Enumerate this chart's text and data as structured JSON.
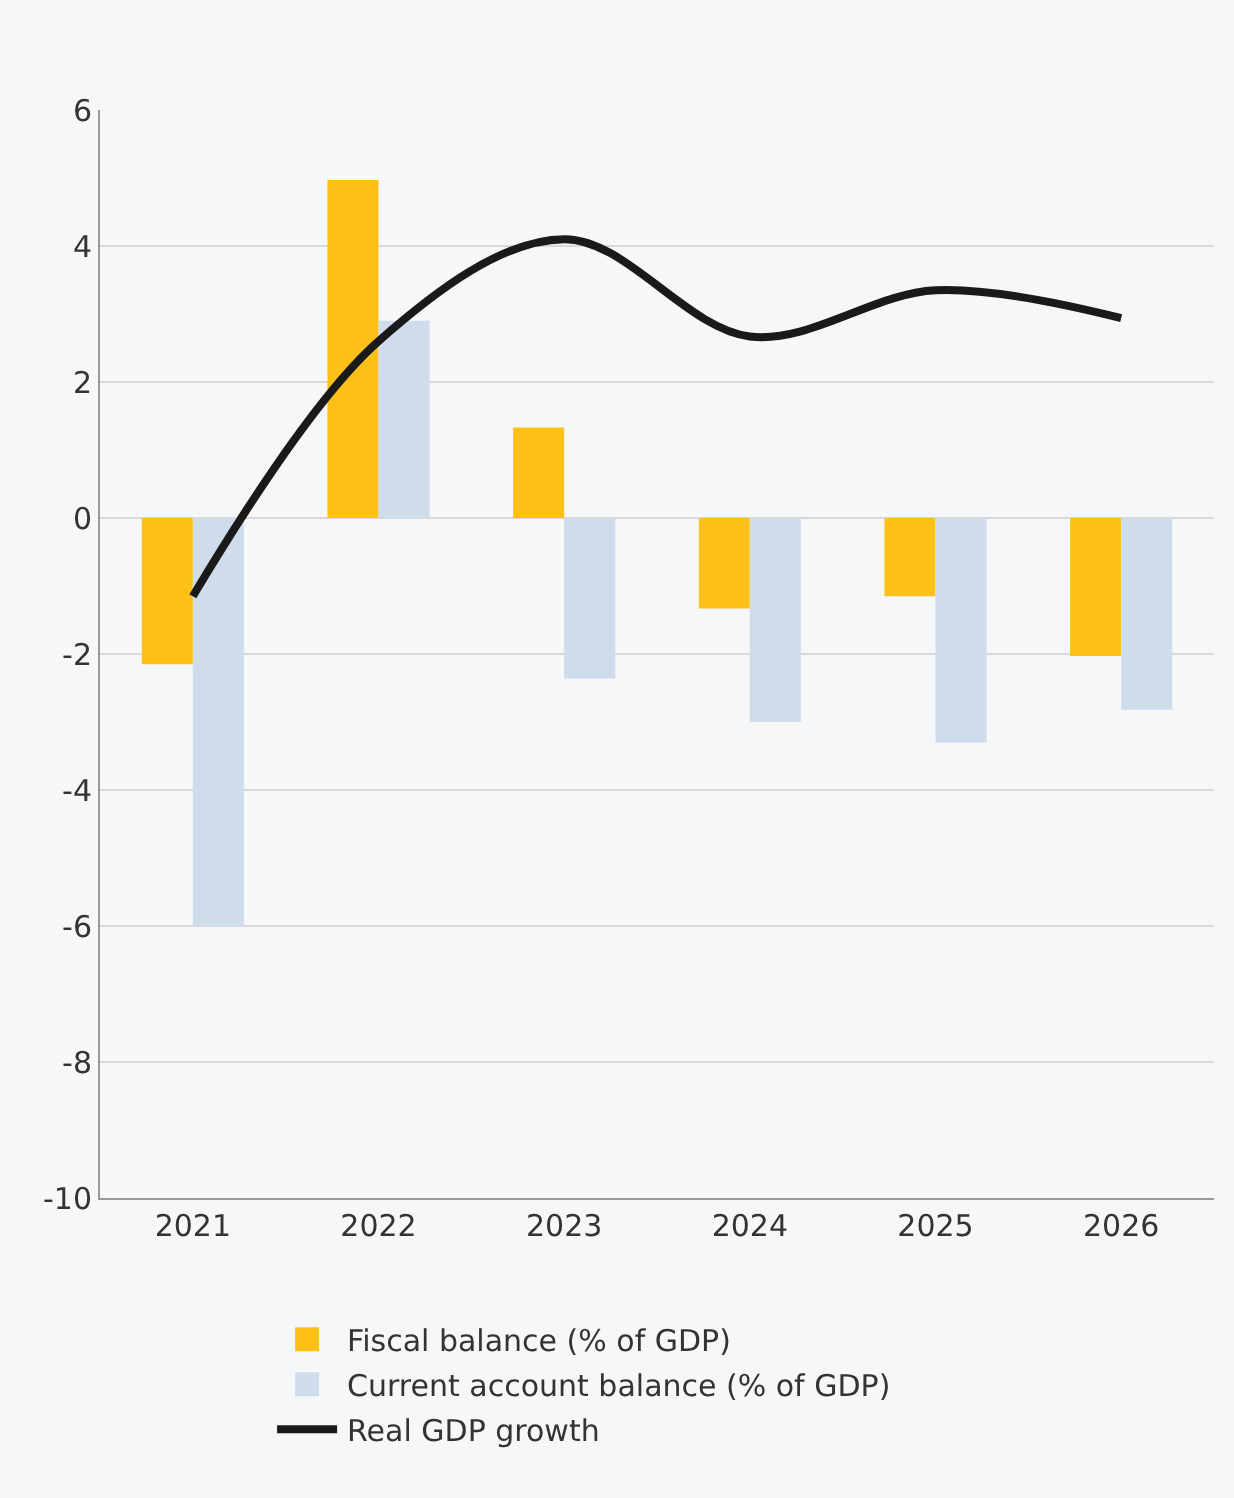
{
  "chart_data": {
    "type": "bar",
    "categories": [
      "2021",
      "2022",
      "2023",
      "2024",
      "2025",
      "2026"
    ],
    "series": [
      {
        "name": "Fiscal balance (% of GDP)",
        "color": "#fdc018",
        "values": [
          -2.15,
          4.97,
          1.33,
          -1.33,
          -1.15,
          -2.03
        ]
      },
      {
        "name": "Current account balance (% of GDP)",
        "color": "#cfdcec",
        "values": [
          -6.0,
          2.9,
          -2.36,
          -3.0,
          -3.3,
          -2.82
        ]
      },
      {
        "name": "Real GDP growth",
        "type": "line",
        "color": "#1a1a1a",
        "values": [
          -1.15,
          2.6,
          4.1,
          2.67,
          3.35,
          2.94
        ]
      }
    ],
    "ylim": [
      -10,
      6
    ],
    "yticks": [
      -10,
      -8,
      -6,
      -4,
      -2,
      0,
      2,
      4,
      6
    ],
    "grid": "y",
    "legend": "bottom"
  }
}
